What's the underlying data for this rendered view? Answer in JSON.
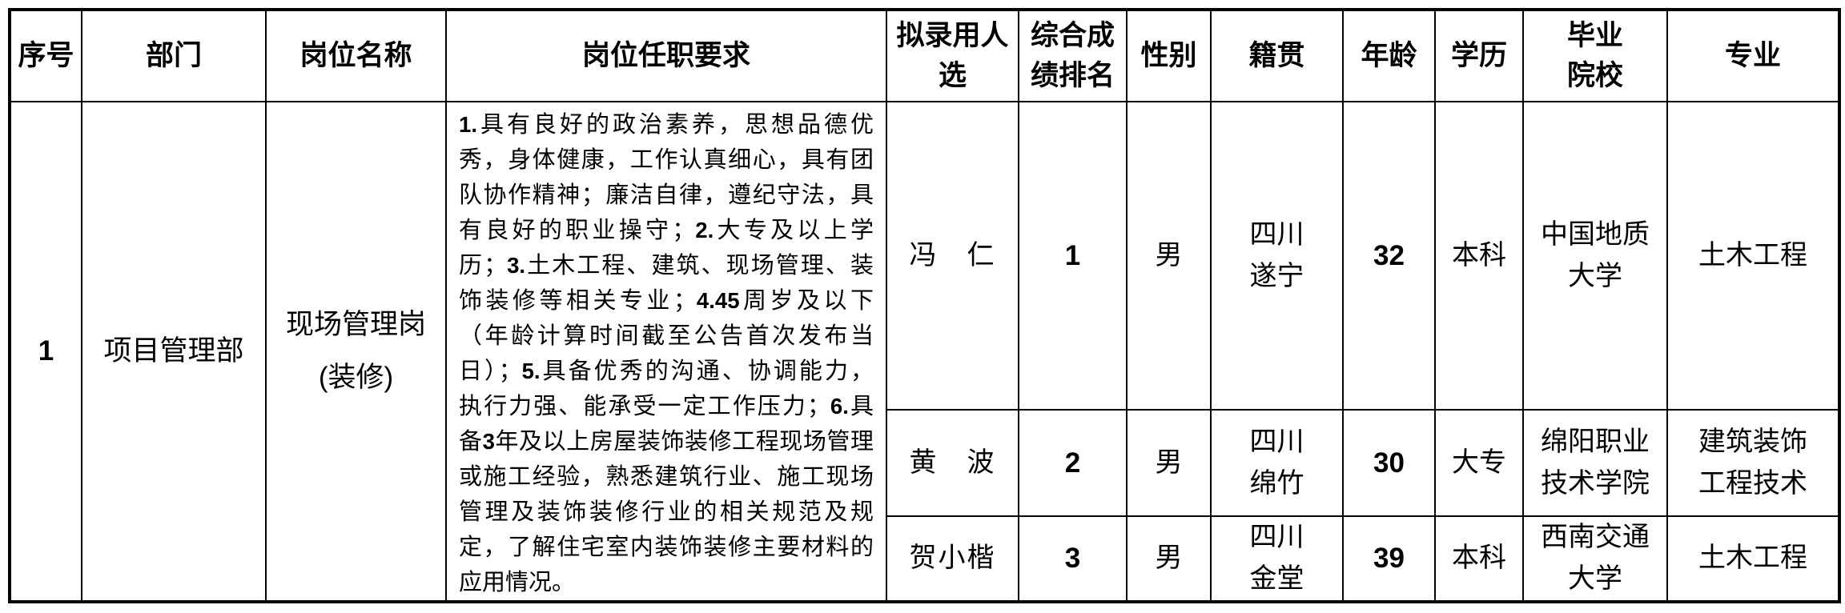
{
  "colors": {
    "background": "#ffffff",
    "border": "#000000",
    "text": "#000000"
  },
  "table": {
    "columns": [
      "序号",
      "部门",
      "岗位名称",
      "岗位任职要求",
      "拟录用人\n选",
      "综合成\n绩排名",
      "性别",
      "籍贯",
      "年龄",
      "学历",
      "毕业\n院校",
      "专业"
    ],
    "group": {
      "index": "1",
      "department": "项目管理部",
      "position": "现场管理岗\n(装修)",
      "requirements": "1.具有良好的政治素养，思想品德优\n秀，身体健康，工作认真细心，具有团\n队协作精神；廉洁自律，遵纪守法，具\n有良好的职业操守；2.大专及以上学\n历；3.土木工程、建筑、现场管理、装\n饰装修等相关专业；4.45周岁及以下\n（年龄计算时间截至公告首次发布当\n日）；5.具备优秀的沟通、协调能力，\n执行力强、能承受一定工作压力；6.具\n备3年及以上房屋装饰装修工程现场管理\n或施工经验，熟悉建筑行业、施工现场\n管理及装饰装修行业的相关规范及规\n定，了解住宅室内装饰装修主要材料的\n应用情况。"
    },
    "candidates": [
      {
        "name": "冯　仁",
        "rank": "1",
        "gender": "男",
        "native_place": "四川\n遂宁",
        "age": "32",
        "education": "本科",
        "school": "中国地质\n大学",
        "major": "土木工程"
      },
      {
        "name": "黄　波",
        "rank": "2",
        "gender": "男",
        "native_place": "四川\n绵竹",
        "age": "30",
        "education": "大专",
        "school": "绵阳职业\n技术学院",
        "major": "建筑装饰\n工程技术"
      },
      {
        "name": "贺小楷",
        "rank": "3",
        "gender": "男",
        "native_place": "四川\n金堂",
        "age": "39",
        "education": "本科",
        "school": "西南交通\n大学",
        "major": "土木工程"
      }
    ]
  }
}
